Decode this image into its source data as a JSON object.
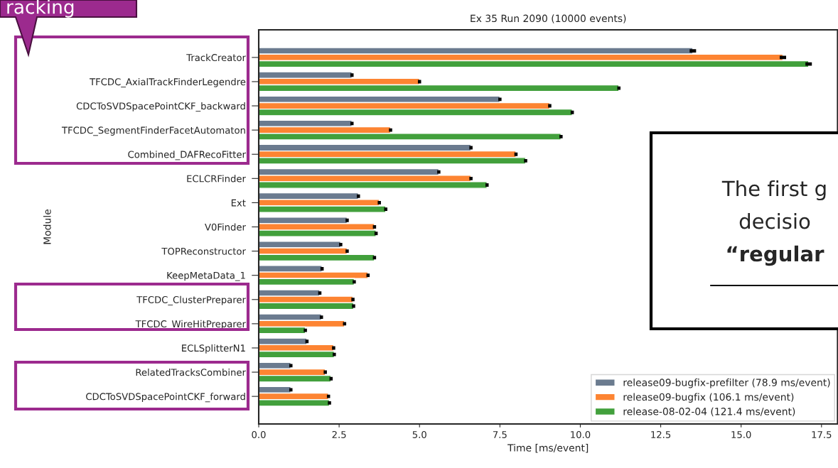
{
  "chart_data": {
    "type": "bar",
    "orientation": "horizontal",
    "title": "Ex 35 Run 2090 (10000 events)",
    "xlabel": "Time [ms/event]",
    "ylabel": "Module",
    "categories": [
      "TrackCreator",
      "TFCDC_AxialTrackFinderLegendre",
      "CDCToSVDSpacePointCKF_backward",
      "TFCDC_SegmentFinderFacetAutomaton",
      "Combined_DAFRecoFitter",
      "ECLCRFinder",
      "Ext",
      "V0Finder",
      "TOPReconstructor",
      "KeepMetaData_1",
      "TFCDC_ClusterPreparer",
      "TFCDC_WireHitPreparer",
      "ECLSplitterN1",
      "RelatedTracksCombiner",
      "CDCToSVDSpacePointCKF_forward"
    ],
    "series": [
      {
        "name": "release09-bugfix-prefilter (78.9 ms/event)",
        "color": "#6b7b8f",
        "values": [
          13.5,
          2.9,
          7.5,
          2.9,
          6.6,
          5.6,
          3.1,
          2.75,
          2.55,
          1.97,
          1.9,
          1.95,
          1.5,
          1.0,
          1.0
        ],
        "errors": [
          0.1,
          0.05,
          0.05,
          0.05,
          0.05,
          0.05,
          0.05,
          0.05,
          0.05,
          0.05,
          0.05,
          0.05,
          0.05,
          0.05,
          0.05
        ]
      },
      {
        "name": "release09-bugfix (106.1 ms/event)",
        "color": "#fd8432",
        "values": [
          16.3,
          5.0,
          9.05,
          4.1,
          8.0,
          6.6,
          3.75,
          3.6,
          2.75,
          3.4,
          2.93,
          2.67,
          2.33,
          2.07,
          2.17
        ],
        "errors": [
          0.1,
          0.05,
          0.05,
          0.05,
          0.05,
          0.05,
          0.05,
          0.05,
          0.05,
          0.05,
          0.05,
          0.05,
          0.05,
          0.05,
          0.05
        ]
      },
      {
        "name": "release-08-02-04 (121.4 ms/event)",
        "color": "#42a03c",
        "values": [
          17.1,
          11.2,
          9.75,
          9.4,
          8.3,
          7.1,
          3.95,
          3.65,
          3.6,
          2.97,
          2.95,
          1.45,
          2.35,
          2.25,
          2.2
        ],
        "errors": [
          0.1,
          0.05,
          0.05,
          0.05,
          0.05,
          0.05,
          0.05,
          0.05,
          0.05,
          0.05,
          0.05,
          0.05,
          0.05,
          0.05,
          0.05
        ]
      }
    ],
    "xlim": [
      0,
      18.0
    ],
    "xticks": [
      {
        "value": 0,
        "label": "0.0"
      },
      {
        "value": 2.5,
        "label": "2.5"
      },
      {
        "value": 5.0,
        "label": "5.0"
      },
      {
        "value": 7.5,
        "label": "7.5"
      },
      {
        "value": 10.0,
        "label": "10.0"
      },
      {
        "value": 12.5,
        "label": "12.5"
      },
      {
        "value": 15.0,
        "label": "15.0"
      },
      {
        "value": 17.5,
        "label": "17.5"
      }
    ],
    "legend": "bottom right",
    "grid": false,
    "annotations": [
      "racking",
      "The first g",
      "decisio",
      "“regular"
    ]
  }
}
